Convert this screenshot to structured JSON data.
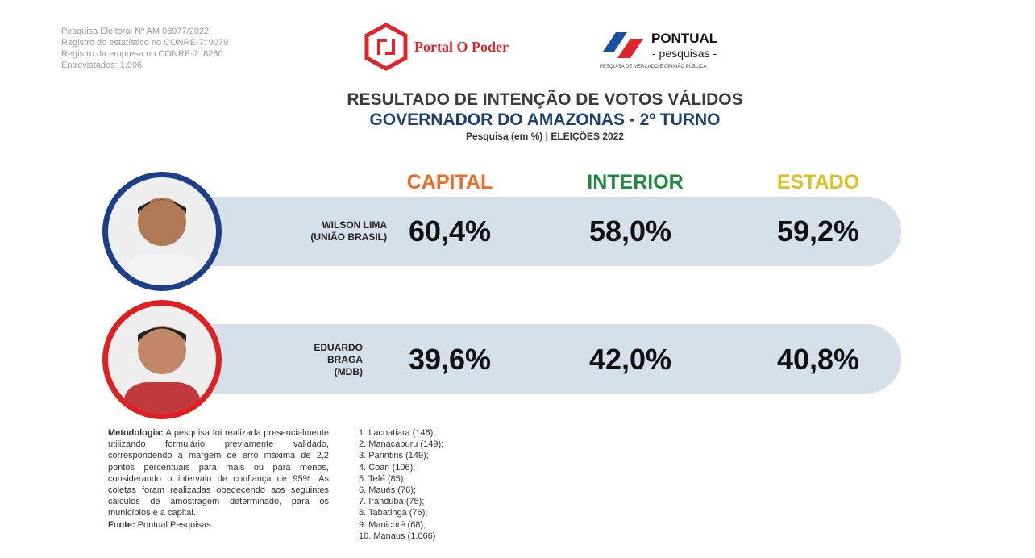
{
  "meta": [
    "Pesquisa Eleitoral Nº AM 06977/2022",
    "Registro do estatístico no CONRE-7: 9079",
    "Registro da empresa no CONRE-7: 8260",
    "Entrevistados: 1.996"
  ],
  "logos": {
    "portal": "Portal O Poder",
    "pontual": "PONTUAL",
    "pontual_sub": "- pesquisas -",
    "pontual_tag": "PESQUISA DE MERCADO E OPINIÃO PÚBLICA"
  },
  "chart_data": {
    "type": "table",
    "title": "RESULTADO DE INTENÇÃO DE VOTOS VÁLIDOS",
    "subtitle": "GOVERNADOR DO AMAZONAS - 2º TURNO",
    "caption": "Pesquisa (em %) | ELEIÇÕES 2022",
    "columns": [
      "CAPITAL",
      "INTERIOR",
      "ESTADO"
    ],
    "column_colors": [
      "#f26a21",
      "#1f8a3c",
      "#d9c21f"
    ],
    "rows": [
      {
        "name": [
          "WILSON LIMA",
          "(UNIÃO BRASIL)"
        ],
        "color": "#1d3f8a",
        "values": [
          "60,4%",
          "58,0%",
          "59,2%"
        ]
      },
      {
        "name": [
          "EDUARDO",
          "BRAGA",
          "(MDB)"
        ],
        "color": "#e02020",
        "values": [
          "39,6%",
          "42,0%",
          "40,8%"
        ]
      }
    ]
  },
  "methodology": {
    "label": "Metodologia:",
    "text": " A pesquisa foi realizada presencialmente utilizando formulário previamente validado, correspondendo à margem de erro máxima de 2,2 pontos percentuais para mais ou para menos, considerando o intervalo de confiança de 95%. As coletas foram realizadas obedecendo aos seguintes cálculos de amostragem determinado, para os municípios e a capital.",
    "source_label": "Fonte:",
    "source": " Pontual Pesquisas."
  },
  "towns": [
    "1. Itacoatiara (146);",
    "2. Manacapuru (149);",
    "3. Parintins (149);",
    "4. Coari (106);",
    "5. Tefé (85);",
    "6. Maués (76);",
    "7. Iranduba (75);",
    "8. Tabatinga (76);",
    "9. Manicoré (68);",
    "10. Manaus (1.066)"
  ]
}
